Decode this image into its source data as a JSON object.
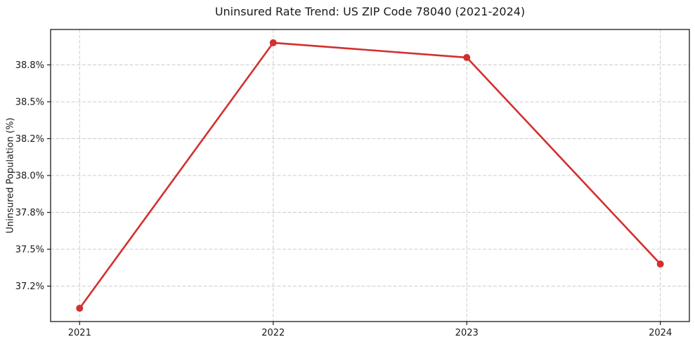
{
  "chart_data": {
    "type": "line",
    "title": "Uninsured Rate Trend: US ZIP Code 78040 (2021-2024)",
    "xlabel": "",
    "ylabel": "Uninsured Population (%)",
    "x": [
      2021,
      2022,
      2023,
      2024
    ],
    "series": [
      {
        "values": [
          37.1,
          38.9,
          38.8,
          37.4
        ]
      }
    ],
    "xticks": {
      "values": [
        2021,
        2022,
        2023,
        2024
      ],
      "labels": [
        "2021",
        "2022",
        "2023",
        "2024"
      ]
    },
    "yticks": {
      "values": [
        37.25,
        37.5,
        37.75,
        38.0,
        38.25,
        38.5,
        38.75
      ],
      "labels": [
        "37.2%",
        "37.5%",
        "37.8%",
        "38.0%",
        "38.2%",
        "38.5%",
        "38.8%"
      ]
    },
    "xlim": [
      2020.85,
      2024.15
    ],
    "ylim": [
      37.01,
      38.99
    ],
    "grid": true,
    "legend": false,
    "marker": "circle",
    "colors": {
      "line": "#d32f2f",
      "marker": "#d32f2f",
      "grid": "#cccccc",
      "axis": "#1a1a1a",
      "background": "#ffffff"
    }
  }
}
